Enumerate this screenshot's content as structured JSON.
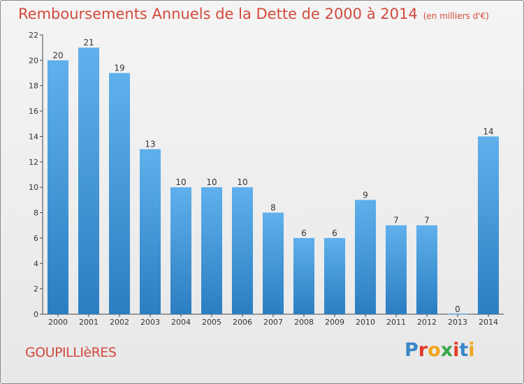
{
  "title": "Remboursements Annuels de la Dette de 2000 à 2014",
  "subtitle": "(en milliers d'€)",
  "commune": "GOUPILLIèRES",
  "logo": {
    "text": "Proxiti",
    "letter_colors": [
      "#3a86c8",
      "#e23a2b",
      "#f2a51a",
      "#3aa548",
      "#e23a2b",
      "#3a86c8",
      "#f2a51a"
    ]
  },
  "colors": {
    "accent": "#d24a3c",
    "bar_top": "#5fb0ec",
    "bar_bottom": "#2b7ec1"
  },
  "chart_data": {
    "type": "bar",
    "title": "Remboursements Annuels de la Dette de 2000 à 2014",
    "subtitle": "(en milliers d'€)",
    "categories": [
      "2000",
      "2001",
      "2002",
      "2003",
      "2004",
      "2005",
      "2006",
      "2007",
      "2008",
      "2009",
      "2010",
      "2011",
      "2012",
      "2013",
      "2014"
    ],
    "values": [
      20,
      21,
      19,
      13,
      10,
      10,
      10,
      8,
      6,
      6,
      9,
      7,
      7,
      0,
      14
    ],
    "ylim": [
      0,
      22
    ],
    "yticks": [
      0,
      2,
      4,
      6,
      8,
      10,
      12,
      14,
      16,
      18,
      20,
      22
    ],
    "grid": false,
    "xlabel": "",
    "ylabel": ""
  }
}
